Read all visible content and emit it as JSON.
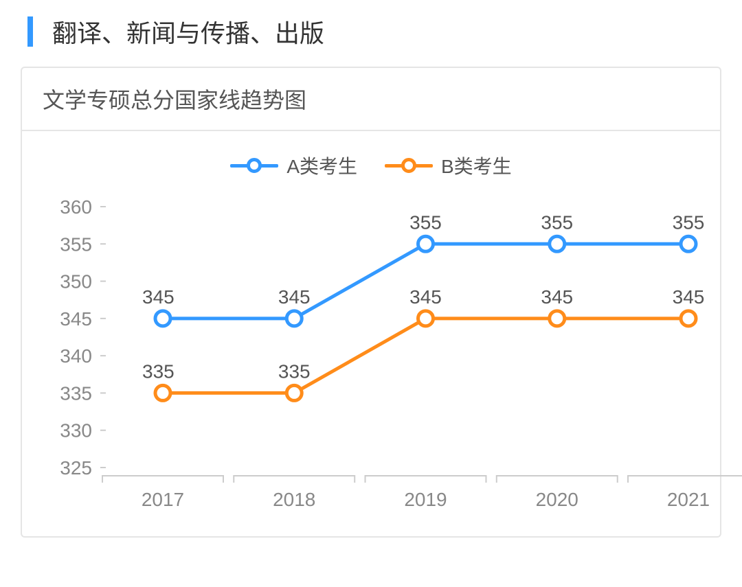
{
  "page": {
    "title": "翻译、新闻与传播、出版",
    "title_bar_color": "#3399ff"
  },
  "chart": {
    "type": "line",
    "header": "文学专硕总分国家线趋势图",
    "background_color": "#ffffff",
    "border_color": "#e5e5e5",
    "text_color": "#555555",
    "tick_color": "#888888",
    "tick_line_color": "#cccccc",
    "categories": [
      "2017",
      "2018",
      "2019",
      "2020",
      "2021"
    ],
    "y_ticks": [
      325,
      330,
      335,
      340,
      345,
      350,
      355,
      360
    ],
    "ylim": [
      325,
      360
    ],
    "line_width": 5,
    "marker_size": 11,
    "marker_stroke": 5,
    "label_fontsize": 28,
    "tick_fontsize": 28,
    "series": [
      {
        "name": "A类考生",
        "color": "#3399ff",
        "values": [
          345,
          345,
          355,
          355,
          355
        ]
      },
      {
        "name": "B类考生",
        "color": "#ff8c1a",
        "values": [
          335,
          335,
          345,
          345,
          345
        ]
      }
    ]
  }
}
